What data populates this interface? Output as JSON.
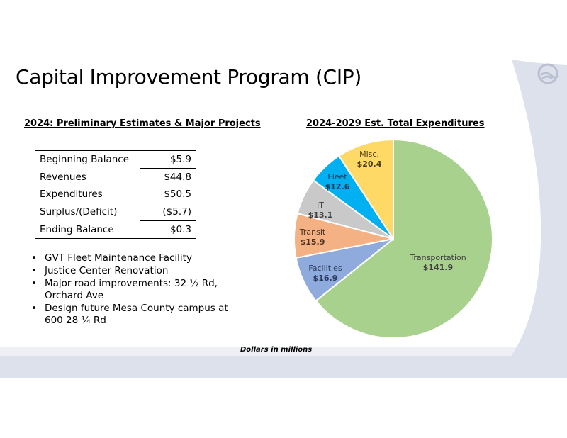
{
  "slide": {
    "title": "Capital Improvement Program (CIP)",
    "left_heading": "2024: Preliminary Estimates & Major Projects",
    "right_heading": "2024-2029 Est. Total Expenditures",
    "note": "Dollars in millions"
  },
  "financials": [
    {
      "label": "Beginning Balance",
      "value": "$5.9"
    },
    {
      "label": "Revenues",
      "value": "$44.8"
    },
    {
      "label": "Expenditures",
      "value": "$50.5"
    },
    {
      "label": "Surplus/(Deficit)",
      "value": "($5.7)"
    },
    {
      "label": "Ending Balance",
      "value": "$0.3"
    }
  ],
  "projects": [
    "GVT Fleet Maintenance Facility",
    "Justice Center Renovation",
    "Major road improvements: 32 ½ Rd, Orchard Ave",
    "Design future Mesa County campus at 600 28 ¼ Rd"
  ],
  "colors": {
    "band": "#dde1ec",
    "logo": "#b9c0d3"
  },
  "chart_data": {
    "type": "pie",
    "title": "2024-2029 Est. Total Expenditures",
    "slices": [
      {
        "label": "Transportation",
        "value": 141.9,
        "display": "$141.9",
        "color": "#a9d18e"
      },
      {
        "label": "Facilities",
        "value": 16.9,
        "display": "$16.9",
        "color": "#8faadc"
      },
      {
        "label": "Transit",
        "value": 15.9,
        "display": "$15.9",
        "color": "#f4b183"
      },
      {
        "label": "IT",
        "value": 13.1,
        "display": "$13.1",
        "color": "#c9c9c9"
      },
      {
        "label": "Fleet",
        "value": 12.6,
        "display": "$12.6",
        "color": "#00b0f0"
      },
      {
        "label": "Misc.",
        "value": 20.4,
        "display": "$20.4",
        "color": "#ffd966"
      }
    ]
  }
}
